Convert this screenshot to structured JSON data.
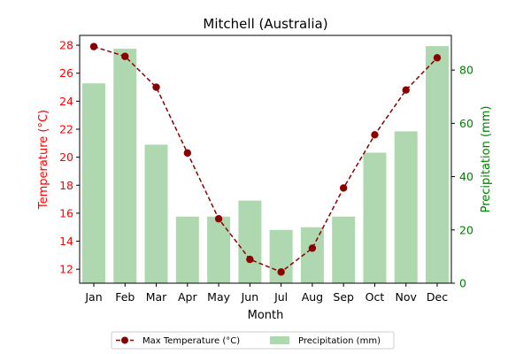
{
  "chart_data": {
    "type": "bar+line",
    "title": "Mitchell (Australia)",
    "xlabel": "Month",
    "categories": [
      "Jan",
      "Feb",
      "Mar",
      "Apr",
      "May",
      "Jun",
      "Jul",
      "Aug",
      "Sep",
      "Oct",
      "Nov",
      "Dec"
    ],
    "left_axis": {
      "label": "Temperature (°C)",
      "ylim": [
        11.0,
        28.7
      ],
      "ticks": [
        "12",
        "14",
        "16",
        "18",
        "20",
        "22",
        "24",
        "26",
        "28"
      ],
      "color": "#ff0000"
    },
    "right_axis": {
      "label": "Precipitation (mm)",
      "ylim": [
        0,
        93
      ],
      "ticks": [
        "0",
        "20",
        "40",
        "60",
        "80"
      ],
      "color": "#008000"
    },
    "series": [
      {
        "name": "Max Temperature (°C)",
        "kind": "line",
        "axis": "left",
        "color": "#8b0000",
        "style": "dashed-with-markers",
        "values": [
          27.9,
          27.2,
          25.0,
          20.3,
          15.6,
          12.7,
          11.8,
          13.5,
          17.8,
          21.6,
          24.8,
          27.1
        ]
      },
      {
        "name": "Precipitation (mm)",
        "kind": "bar",
        "axis": "right",
        "color": "#b0d8b0",
        "values": [
          75,
          88,
          52,
          25,
          25,
          31,
          20,
          21,
          25,
          49,
          57,
          89
        ]
      }
    ],
    "legend": {
      "placement": "bottom-center"
    },
    "grid": false
  }
}
